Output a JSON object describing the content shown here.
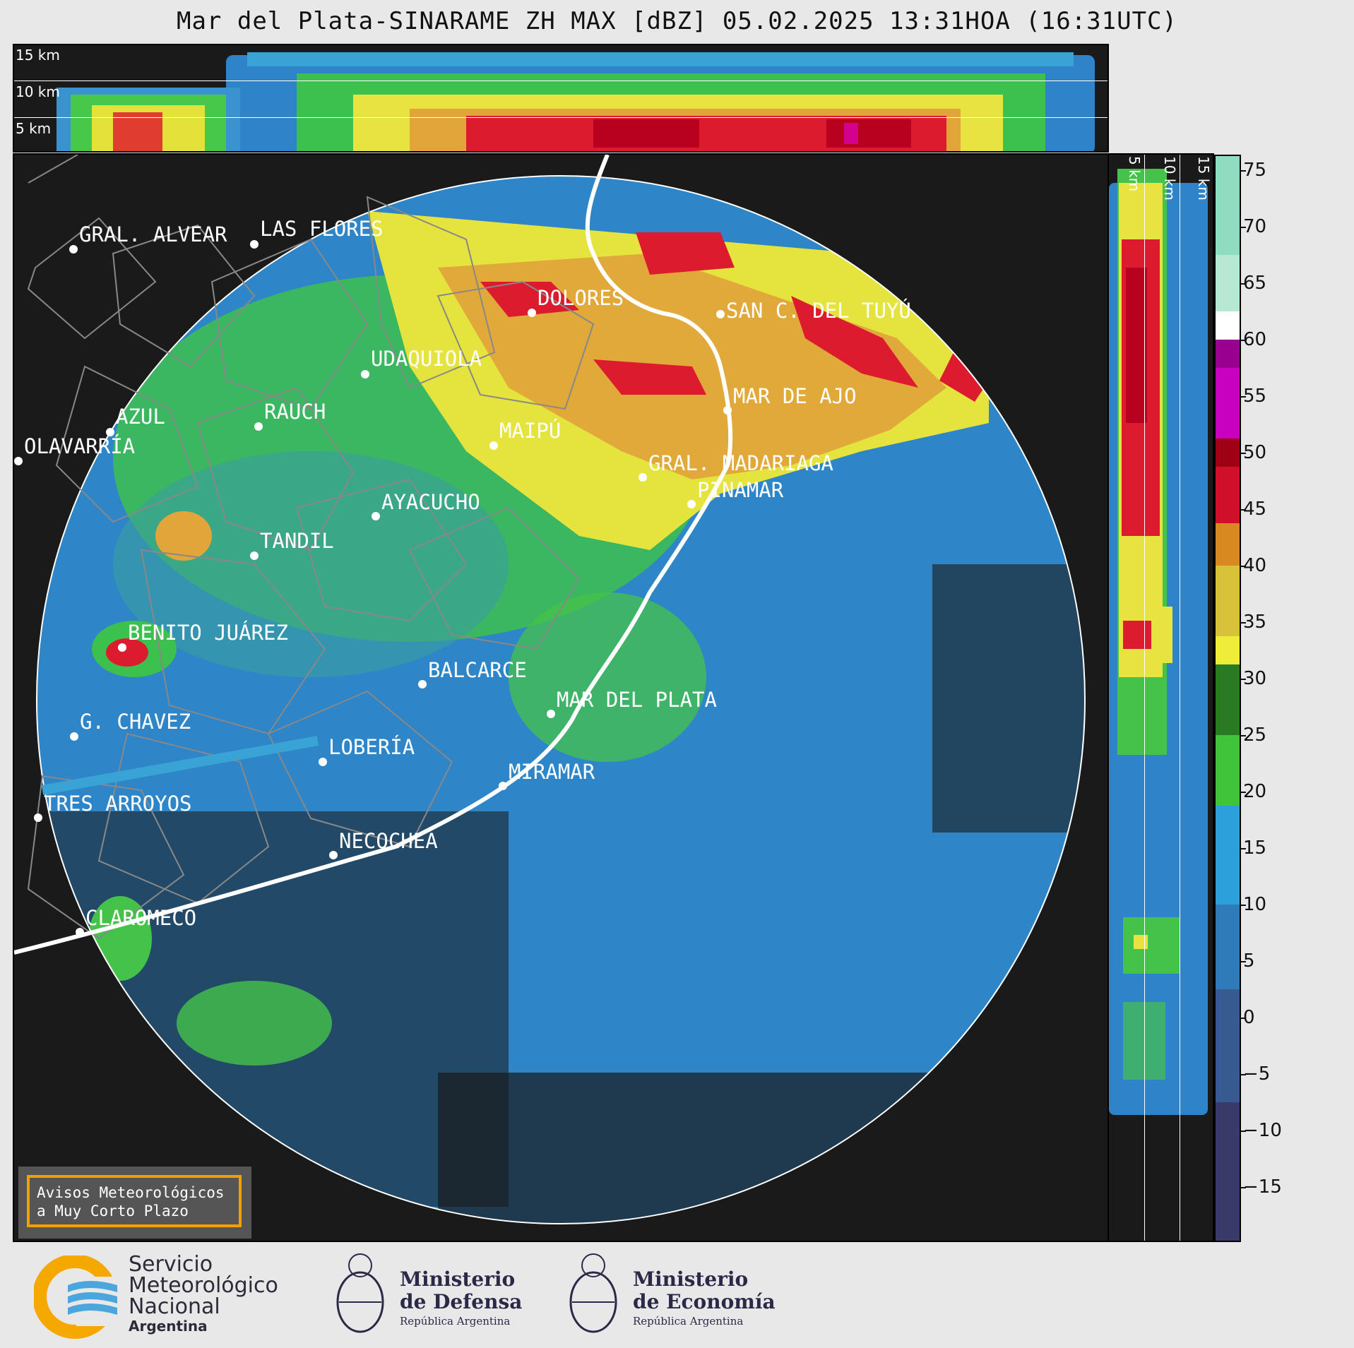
{
  "title": "Mar del Plata-SINARAME ZH MAX [dBZ] 05.02.2025 13:31HOA (16:31UTC)",
  "top_axis_labels": [
    "15 km",
    "10 km",
    "5 km"
  ],
  "side_axis_labels": [
    "5 km",
    "10 km",
    "15 km"
  ],
  "cities": [
    "GRAL. ALVEAR",
    "LAS FLORES",
    "DOLORES",
    "SAN C. DEL TUYÚ",
    "UDAQUIOLA",
    "AZUL",
    "OLAVARRÍA",
    "RAUCH",
    "MAIPÚ",
    "MAR DE AJO",
    "GRAL. MADARIAGA",
    "PINAMAR",
    "AYACUCHO",
    "TANDIL",
    "BENITO JUÁREZ",
    "BALCARCE",
    "MAR DEL PLATA",
    "G. CHAVEZ",
    "LOBERÍA",
    "MIRAMAR",
    "TRES ARROYOS",
    "NECOCHEA",
    "CLAROMECO"
  ],
  "colorbar": {
    "ticks": [
      "75",
      "70",
      "65",
      "60",
      "55",
      "50",
      "45",
      "40",
      "35",
      "30",
      "25",
      "20",
      "15",
      "10",
      "5",
      "0",
      "−5",
      "−10",
      "−15"
    ],
    "range": [
      -20,
      77
    ]
  },
  "avisos": {
    "line1": "Avisos Meteorológicos",
    "line2": "a Muy Corto Plazo"
  },
  "logos": {
    "smn": {
      "line1": "Servicio",
      "line2": "Meteorológico",
      "line3": "Nacional",
      "line4": "Argentina"
    },
    "defensa": {
      "line1": "Ministerio",
      "line2": "de Defensa",
      "line3": "República Argentina"
    },
    "economia": {
      "line1": "Ministerio",
      "line2": "de Economía",
      "line3": "República Argentina"
    }
  }
}
